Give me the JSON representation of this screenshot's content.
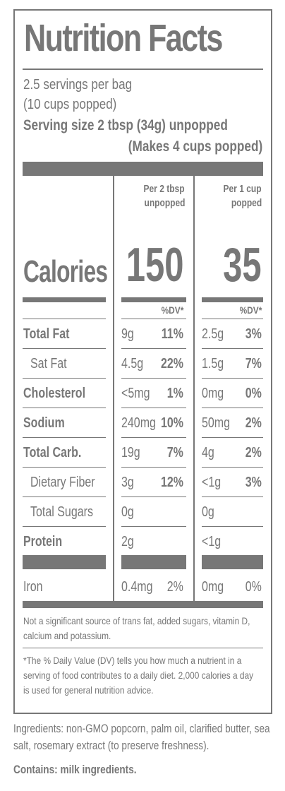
{
  "label": {
    "title": "Nutrition Facts",
    "servings_per_container": "2.5 servings per bag",
    "servings_popped": "(10 cups popped)",
    "serving_size": "Serving size 2 tbsp (34g) unpopped",
    "serving_makes": "(Makes 4 cups popped)",
    "col1_header_line1": "Per 2 tbsp",
    "col1_header_line2": "unpopped",
    "col2_header_line1": "Per 1 cup",
    "col2_header_line2": "popped",
    "calories_label": "Calories",
    "calories_col1": "150",
    "calories_col2": "35",
    "dv_header": "%DV*",
    "rows": [
      {
        "name": "Total Fat",
        "amt1": "9g",
        "dv1": "11%",
        "amt2": "2.5g",
        "dv2": "3%"
      },
      {
        "name": "Sat Fat",
        "amt1": "4.5g",
        "dv1": "22%",
        "amt2": "1.5g",
        "dv2": "7%"
      },
      {
        "name": "Cholesterol",
        "amt1": "<5mg",
        "dv1": "1%",
        "amt2": "0mg",
        "dv2": "0%"
      },
      {
        "name": "Sodium",
        "amt1": "240mg",
        "dv1": "10%",
        "amt2": "50mg",
        "dv2": "2%"
      },
      {
        "name": "Total Carb.",
        "amt1": "19g",
        "dv1": "7%",
        "amt2": "4g",
        "dv2": "2%"
      },
      {
        "name": "Dietary Fiber",
        "amt1": "3g",
        "dv1": "12%",
        "amt2": "<1g",
        "dv2": "3%"
      },
      {
        "name": "Total Sugars",
        "amt1": "0g",
        "dv1": "",
        "amt2": "0g",
        "dv2": ""
      },
      {
        "name": "Protein",
        "amt1": "2g",
        "dv1": "",
        "amt2": "<1g",
        "dv2": ""
      }
    ],
    "iron": {
      "name": "Iron",
      "amt1": "0.4mg",
      "dv1": "2%",
      "amt2": "0mg",
      "dv2": "0%"
    },
    "footnote1": "Not a significant source of trans fat, added sugars, vitamin D, calcium and potassium.",
    "footnote2": "*The % Daily Value (DV) tells you how much a nutrient in a serving of food contributes to a daily diet. 2,000 calories a day is used for general nutrition advice."
  },
  "ingredients": {
    "text": "Ingredients: non-GMO popcorn, palm oil, clarified butter, sea salt, rosemary extract (to preserve freshness).",
    "contains": "Contains: milk ingredients."
  }
}
